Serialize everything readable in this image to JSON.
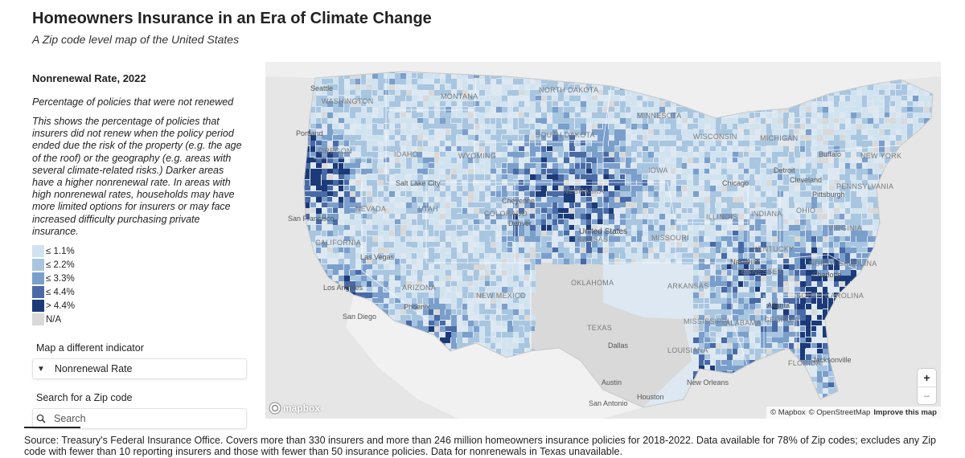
{
  "header": {
    "title": "Homeowners Insurance in an Era of Climate Change",
    "subtitle": "A Zip code level map of the United States"
  },
  "indicator": {
    "title": "Nonrenewal Rate, 2022",
    "short_description": "Percentage of policies that were not renewed",
    "long_description": "This shows the percentage of policies that insurers did not renew when the policy period ended due the risk of the property (e.g. the age of the roof) or the geography (e.g. areas with several climate-related risks.) Darker areas have a higher nonrenewal rate. In areas with high nonrenewal rates, households may have more limited options for insurers or may face increased difficulty purchasing private insurance."
  },
  "legend": [
    {
      "label": "≤ 1.1%",
      "color": "#d2e3f0"
    },
    {
      "label": "≤ 2.2%",
      "color": "#a9c6e0"
    },
    {
      "label": "≤ 3.3%",
      "color": "#7b9fcb"
    },
    {
      "label": "≤ 4.4%",
      "color": "#4a6aa6"
    },
    {
      "label": "> 4.4%",
      "color": "#1c3a78"
    },
    {
      "label": "N/A",
      "color": "#d9d9d9"
    }
  ],
  "controls": {
    "indicator_label": "Map a different indicator",
    "indicator_value": "Nonrenewal Rate",
    "search_label": "Search for a Zip code",
    "search_placeholder": "Search"
  },
  "map": {
    "country_label": "United States",
    "state_labels": [
      "WASHINGTON",
      "MONTANA",
      "NORTH DAKOTA",
      "MINNESOTA",
      "SOUTH DAKOTA",
      "OREGON",
      "IDAHO",
      "WYOMING",
      "NEBRASKA",
      "IOWA",
      "WISCONSIN",
      "MICHIGAN",
      "NEVADA",
      "UTAH",
      "COLORADO",
      "KANSAS",
      "MISSOURI",
      "ILLINOIS",
      "INDIANA",
      "OHIO",
      "PENNSYLVANIA",
      "NEW YORK",
      "CALIFORNIA",
      "ARIZONA",
      "NEW MEXICO",
      "OKLAHOMA",
      "ARKANSAS",
      "TENNESSEE",
      "KENTUCKY",
      "VIRGINIA",
      "NORTH CAROLINA",
      "SOUTH CAROLINA",
      "GEORGIA",
      "ALABAMA",
      "MISSISSIPPI",
      "LOUISIANA",
      "TEXAS",
      "FLORIDA"
    ],
    "cities": [
      "Seattle",
      "Portland",
      "San Francisco",
      "Las Vegas",
      "Los Angeles",
      "San Diego",
      "Phoenix",
      "Denver",
      "Cheyenne",
      "Salt Lake City",
      "Dallas",
      "Houston",
      "San Antonio",
      "Austin",
      "Chicago",
      "Detroit",
      "Cleveland",
      "Pittsburgh",
      "Buffalo",
      "Nashville",
      "Atlanta",
      "Charlotte",
      "Jacksonville",
      "New Orleans"
    ],
    "mapbox_label": "mapbox",
    "zoom_in": "+",
    "zoom_out": "−",
    "attribution": {
      "mapbox": "© Mapbox",
      "osm": "© OpenStreetMap",
      "improve": "Improve this map"
    }
  },
  "source": "Source: Treasury's Federal Insurance Office. Covers more than 330 insurers and more than 246 million homeowners insurance policies for 2018-2022. Data available for 78% of Zip codes; excludes any Zip code with fewer than 10 reporting insurers and those with fewer than 50 insurance policies. Data for nonrenewals in Texas unavailable."
}
